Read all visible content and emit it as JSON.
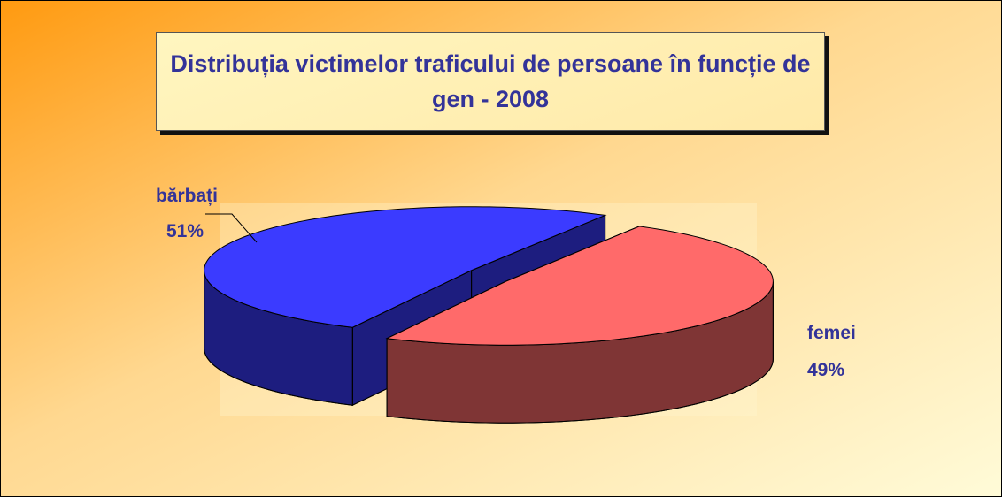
{
  "chart_data": {
    "type": "pie",
    "title": "Distribuția victimelor traficului de persoane în funcție de gen - 2008",
    "categories": [
      "bărbați",
      "femei"
    ],
    "values": [
      51,
      49
    ],
    "value_labels": [
      "51%",
      "49%"
    ],
    "colors": [
      "#3b3bff",
      "#ff6a6a"
    ]
  }
}
